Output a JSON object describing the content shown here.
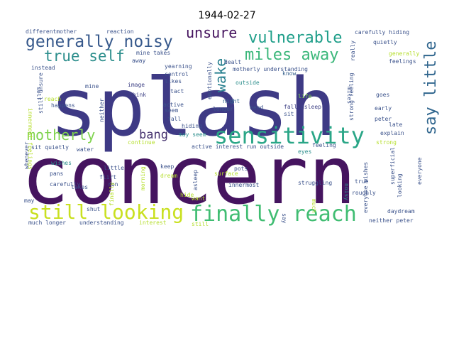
{
  "chart_data": {
    "type": "wordcloud",
    "title": "1944-02-27",
    "words": [
      {
        "text": "concern",
        "weight": 100,
        "color": "#45145f"
      },
      {
        "text": "splash",
        "weight": 95,
        "color": "#3e3a85"
      },
      {
        "text": "sensitivity",
        "weight": 40,
        "color": "#2aa687"
      },
      {
        "text": "finally reach",
        "weight": 38,
        "color": "#40bd72"
      },
      {
        "text": "still looking",
        "weight": 33,
        "color": "#c9e020"
      },
      {
        "text": "generally noisy",
        "weight": 28,
        "color": "#37598c"
      },
      {
        "text": "miles away",
        "weight": 26,
        "color": "#3bb77a"
      },
      {
        "text": "vulnerable",
        "weight": 26,
        "color": "#1e9e89"
      },
      {
        "text": "true self",
        "weight": 25,
        "color": "#2c8e8c"
      },
      {
        "text": "motherly",
        "weight": 24,
        "color": "#7fd34e"
      },
      {
        "text": "say little",
        "weight": 23,
        "color": "#30668e"
      },
      {
        "text": "unsure",
        "weight": 22,
        "color": "#45135e"
      },
      {
        "text": "wake",
        "weight": 20,
        "color": "#277f8e"
      },
      {
        "text": "bang",
        "weight": 18,
        "color": "#46336f"
      },
      {
        "text": "fall asleep",
        "weight": 8,
        "color": "#414487"
      },
      {
        "text": "head",
        "weight": 8,
        "color": "#3b528b"
      },
      {
        "text": "mine",
        "weight": 7,
        "color": "#3b528b"
      },
      {
        "text": "image",
        "weight": 7,
        "color": "#414487"
      },
      {
        "text": "think",
        "weight": 7,
        "color": "#414487"
      },
      {
        "text": "likes",
        "weight": 7,
        "color": "#3b528b"
      },
      {
        "text": "control",
        "weight": 7,
        "color": "#3b528b"
      },
      {
        "text": "tact",
        "weight": 7,
        "color": "#3b528b"
      },
      {
        "text": "outside",
        "weight": 7,
        "color": "#2c8e8c"
      },
      {
        "text": "night",
        "weight": 7,
        "color": "#31688e"
      },
      {
        "text": "know",
        "weight": 7,
        "color": "#35608d"
      },
      {
        "text": "goes",
        "weight": 7,
        "color": "#3b528b"
      },
      {
        "text": "sit",
        "weight": 7,
        "color": "#3b528b"
      },
      {
        "text": "life",
        "weight": 7,
        "color": "#7fd34e"
      },
      {
        "text": "late",
        "weight": 7,
        "color": "#3b528b"
      },
      {
        "text": "explain",
        "weight": 7,
        "color": "#3b528b"
      },
      {
        "text": "strong",
        "weight": 7,
        "color": "#b5de2b"
      },
      {
        "text": "feeling",
        "weight": 7,
        "color": "#3b528b"
      },
      {
        "text": "eyes",
        "weight": 7,
        "color": "#2c8e8c"
      },
      {
        "text": "active interest run outside",
        "weight": 7,
        "color": "#3b528b"
      },
      {
        "text": "hiding",
        "weight": 7,
        "color": "#3b528b"
      },
      {
        "text": "may seem",
        "weight": 7,
        "color": "#2c8e8c"
      },
      {
        "text": "continue",
        "weight": 7,
        "color": "#b5de2b"
      },
      {
        "text": "sit quietly",
        "weight": 7,
        "color": "#3b528b"
      },
      {
        "text": "water",
        "weight": 7,
        "color": "#3b528b"
      },
      {
        "text": "wishes",
        "weight": 7,
        "color": "#2c8e8c"
      },
      {
        "text": "pans",
        "weight": 7,
        "color": "#3b528b"
      },
      {
        "text": "carefully",
        "weight": 7,
        "color": "#3b528b"
      },
      {
        "text": "flirt",
        "weight": 7,
        "color": "#3b528b"
      },
      {
        "text": "run",
        "weight": 7,
        "color": "#3b528b"
      },
      {
        "text": "keep",
        "weight": 7,
        "color": "#3b528b"
      },
      {
        "text": "dream",
        "weight": 7,
        "color": "#b5de2b"
      },
      {
        "text": "surface",
        "weight": 7,
        "color": "#b5de2b"
      },
      {
        "text": "innermost",
        "weight": 7,
        "color": "#3b528b"
      },
      {
        "text": "pots",
        "weight": 7,
        "color": "#3b528b"
      },
      {
        "text": "struggling",
        "weight": 7,
        "color": "#3b528b"
      },
      {
        "text": "noisy",
        "weight": 7,
        "color": "#2c8e8c"
      },
      {
        "text": "true",
        "weight": 7,
        "color": "#3b528b"
      },
      {
        "text": "roughly",
        "weight": 7,
        "color": "#3b528b"
      },
      {
        "text": "much",
        "weight": 7,
        "color": "#b5de2b"
      },
      {
        "text": "want",
        "weight": 7,
        "color": "#b5de2b"
      },
      {
        "text": "shut",
        "weight": 7,
        "color": "#3b528b"
      },
      {
        "text": "may",
        "weight": 7,
        "color": "#3b528b"
      },
      {
        "text": "much longer",
        "weight": 7,
        "color": "#3b528b"
      },
      {
        "text": "understanding",
        "weight": 7,
        "color": "#3b528b"
      },
      {
        "text": "interest",
        "weight": 7,
        "color": "#b5de2b"
      },
      {
        "text": "still",
        "weight": 7,
        "color": "#b5de2b"
      },
      {
        "text": "say",
        "weight": 7,
        "color": "#3b528b"
      },
      {
        "text": "daydream",
        "weight": 7,
        "color": "#3b528b"
      },
      {
        "text": "neither peter",
        "weight": 7,
        "color": "#3b528b"
      },
      {
        "text": "differentmother",
        "weight": 7,
        "color": "#3b528b"
      },
      {
        "text": "reaction",
        "weight": 7,
        "color": "#3b528b"
      },
      {
        "text": "carefully hiding",
        "weight": 7,
        "color": "#3b528b"
      },
      {
        "text": "quietly",
        "weight": 7,
        "color": "#3b528b"
      },
      {
        "text": "generally",
        "weight": 7,
        "color": "#b5de2b"
      },
      {
        "text": "feelings",
        "weight": 7,
        "color": "#3b528b"
      },
      {
        "text": "yearning",
        "weight": 7,
        "color": "#3b528b"
      },
      {
        "text": "mine takes",
        "weight": 7,
        "color": "#3b528b"
      },
      {
        "text": "dealt",
        "weight": 7,
        "color": "#3b528b"
      },
      {
        "text": "motherly understanding",
        "weight": 7,
        "color": "#3b528b"
      },
      {
        "text": "instead",
        "weight": 7,
        "color": "#3b528b"
      },
      {
        "text": "away",
        "weight": 7,
        "color": "#3b528b"
      },
      {
        "text": "takes",
        "weight": 7,
        "color": "#3b528b"
      },
      {
        "text": "reach",
        "weight": 7,
        "color": "#b5de2b"
      },
      {
        "text": "happens",
        "weight": 7,
        "color": "#3b528b"
      },
      {
        "text": "active",
        "weight": 7,
        "color": "#3b528b"
      },
      {
        "text": "seem",
        "weight": 7,
        "color": "#3b528b"
      },
      {
        "text": "fall",
        "weight": 7,
        "color": "#3b528b"
      },
      {
        "text": "longer",
        "weight": 7,
        "color": "#3b528b"
      },
      {
        "text": "peter",
        "weight": 7,
        "color": "#3b528b"
      },
      {
        "text": "early",
        "weight": 7,
        "color": "#3b528b"
      },
      {
        "text": "little",
        "weight": 7,
        "color": "#3b528b"
      },
      {
        "text": "hide",
        "weight": 7,
        "color": "#b5de2b"
      },
      {
        "text": "emotionally",
        "weight": 7,
        "color": "#3b528b"
      },
      {
        "text": "asleep",
        "weight": 7,
        "color": "#3b528b"
      },
      {
        "text": "morning",
        "weight": 7,
        "color": "#b5de2b"
      },
      {
        "text": "really",
        "weight": 7,
        "color": "#3b528b"
      },
      {
        "text": "miles",
        "weight": 7,
        "color": "#3b528b"
      },
      {
        "text": "innermost feelings",
        "weight": 7,
        "color": "#b5de2b"
      },
      {
        "text": "self",
        "weight": 7,
        "color": "#3b528b"
      },
      {
        "text": "still unsure",
        "weight": 7,
        "color": "#3b528b"
      },
      {
        "text": "neither",
        "weight": 7,
        "color": "#3b528b"
      },
      {
        "text": "whenever",
        "weight": 7,
        "color": "#3b528b"
      },
      {
        "text": "superficial",
        "weight": 7,
        "color": "#3b528b"
      },
      {
        "text": "everyone wishes",
        "weight": 7,
        "color": "#3b528b"
      },
      {
        "text": "everyone",
        "weight": 7,
        "color": "#3b528b"
      },
      {
        "text": "strong feeling",
        "weight": 7,
        "color": "#3b528b"
      },
      {
        "text": "looking",
        "weight": 7,
        "color": "#3b528b"
      },
      {
        "text": "finally",
        "weight": 7,
        "color": "#b5de2b"
      }
    ]
  }
}
